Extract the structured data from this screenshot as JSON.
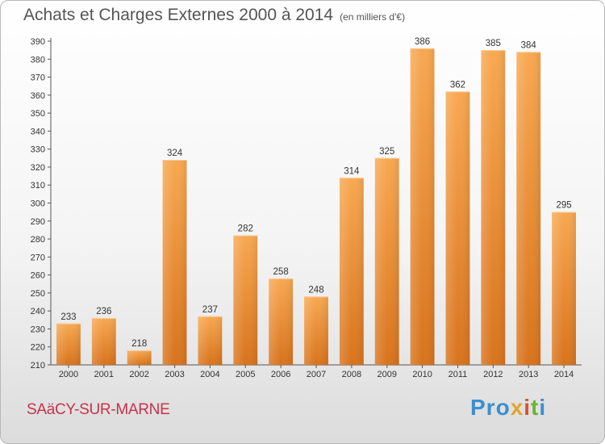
{
  "title": "Achats et Charges Externes 2000 à 2014",
  "subtitle": "(en milliers d'€)",
  "commune": "SAäCY-SUR-MARNE",
  "logo": {
    "p1": "Pro",
    "p2": "x",
    "p3": "i",
    "p4": "t",
    "p5": "i"
  },
  "colors": {
    "bar_light": "#f7a54e",
    "bar_dark": "#d9741c",
    "title": "#555555",
    "commune": "#c8324b"
  },
  "chart_data": {
    "type": "bar",
    "categories": [
      "2000",
      "2001",
      "2002",
      "2003",
      "2004",
      "2005",
      "2006",
      "2007",
      "2008",
      "2009",
      "2010",
      "2011",
      "2012",
      "2013",
      "2014"
    ],
    "values": [
      233,
      236,
      218,
      324,
      237,
      282,
      258,
      248,
      314,
      325,
      386,
      362,
      385,
      384,
      295
    ],
    "ylim": [
      210,
      390
    ],
    "yticks": [
      210,
      220,
      230,
      240,
      250,
      260,
      270,
      280,
      290,
      300,
      310,
      320,
      330,
      340,
      350,
      360,
      370,
      380,
      390
    ],
    "grid": false,
    "legend": "none"
  }
}
